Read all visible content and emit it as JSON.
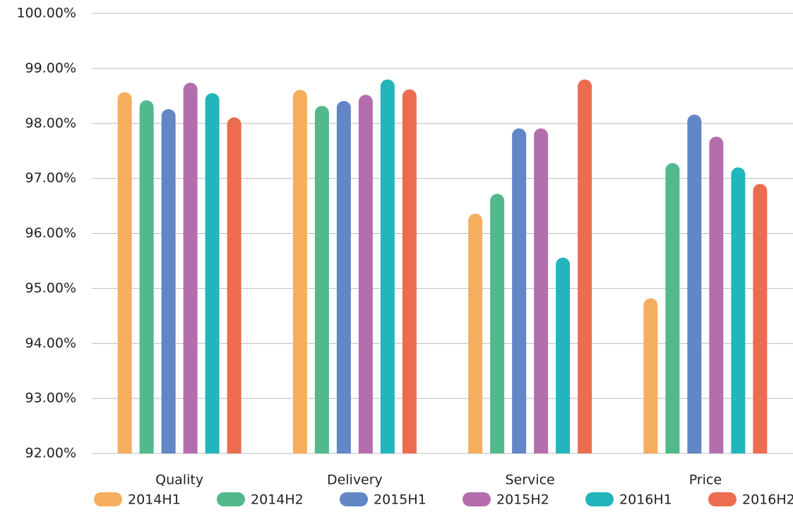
{
  "chart_data": {
    "type": "bar",
    "categories": [
      "Quality",
      "Delivery",
      "Service",
      "Price"
    ],
    "series": [
      {
        "name": "2014H1",
        "color": "#f5ae5e",
        "values": [
          98.57,
          98.61,
          96.36,
          94.82
        ]
      },
      {
        "name": "2014H2",
        "color": "#52b98c",
        "values": [
          98.42,
          98.32,
          96.72,
          97.28
        ]
      },
      {
        "name": "2015H1",
        "color": "#6286c6",
        "values": [
          98.26,
          98.41,
          97.91,
          98.16
        ]
      },
      {
        "name": "2015H2",
        "color": "#b46ead",
        "values": [
          98.74,
          98.52,
          97.91,
          97.76
        ]
      },
      {
        "name": "2016H1",
        "color": "#22b5bb",
        "values": [
          98.55,
          98.8,
          95.56,
          97.2
        ]
      },
      {
        "name": "2016H2",
        "color": "#ec6c50",
        "values": [
          98.11,
          98.62,
          98.8,
          96.9
        ]
      }
    ],
    "ylim": [
      92,
      100
    ],
    "yticks": [
      {
        "value": 92,
        "label": "92.00%"
      },
      {
        "value": 93,
        "label": "93.00%"
      },
      {
        "value": 94,
        "label": "94.00%"
      },
      {
        "value": 95,
        "label": "95.00%"
      },
      {
        "value": 96,
        "label": "96.00%"
      },
      {
        "value": 97,
        "label": "97.00%"
      },
      {
        "value": 98,
        "label": "98.00%"
      },
      {
        "value": 99,
        "label": "99.00%"
      },
      {
        "value": 100,
        "label": "100.00%"
      }
    ],
    "grid": true,
    "legend": "bottom"
  }
}
